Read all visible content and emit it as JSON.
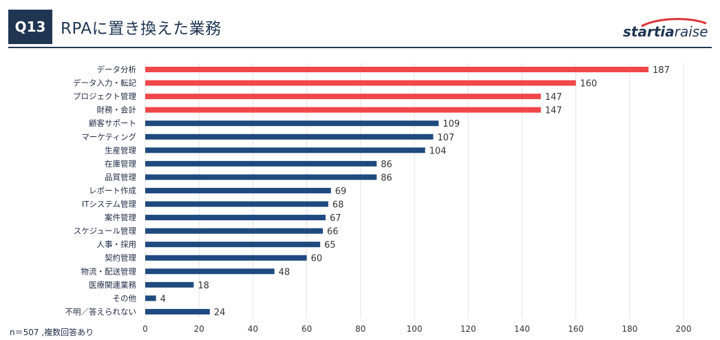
{
  "header": {
    "question_label": "Q13",
    "title": "RPAに置き換えた業務",
    "logo_part1": "startia",
    "logo_part2": "raise"
  },
  "footnote": "n＝507 ,複数回答あり",
  "colors": {
    "highlight": "#f0474a",
    "bar": "#1f4a7f",
    "header": "#1f3552",
    "logo_swoosh": "#d9343a"
  },
  "chart_data": {
    "type": "bar",
    "orientation": "horizontal",
    "categories": [
      "データ分析",
      "データ入力・転記",
      "プロジェクト管理",
      "財務・会計",
      "顧客サポート",
      "マーケティング",
      "生産管理",
      "在庫管理",
      "品質管理",
      "レポート作成",
      "ITシステム管理",
      "案件管理",
      "スケジュール管理",
      "人事・採用",
      "契約管理",
      "物流・配送管理",
      "医療関連業務",
      "その他",
      "不明／答えられない"
    ],
    "values": [
      187,
      160,
      147,
      147,
      109,
      107,
      104,
      86,
      86,
      69,
      68,
      67,
      66,
      65,
      60,
      48,
      18,
      4,
      24
    ],
    "highlighted_top": 4,
    "xlim": [
      0,
      200
    ],
    "xticks": [
      0,
      20,
      40,
      60,
      80,
      100,
      120,
      140,
      160,
      180,
      200
    ],
    "grid": true,
    "title": "",
    "xlabel": "",
    "ylabel": ""
  }
}
